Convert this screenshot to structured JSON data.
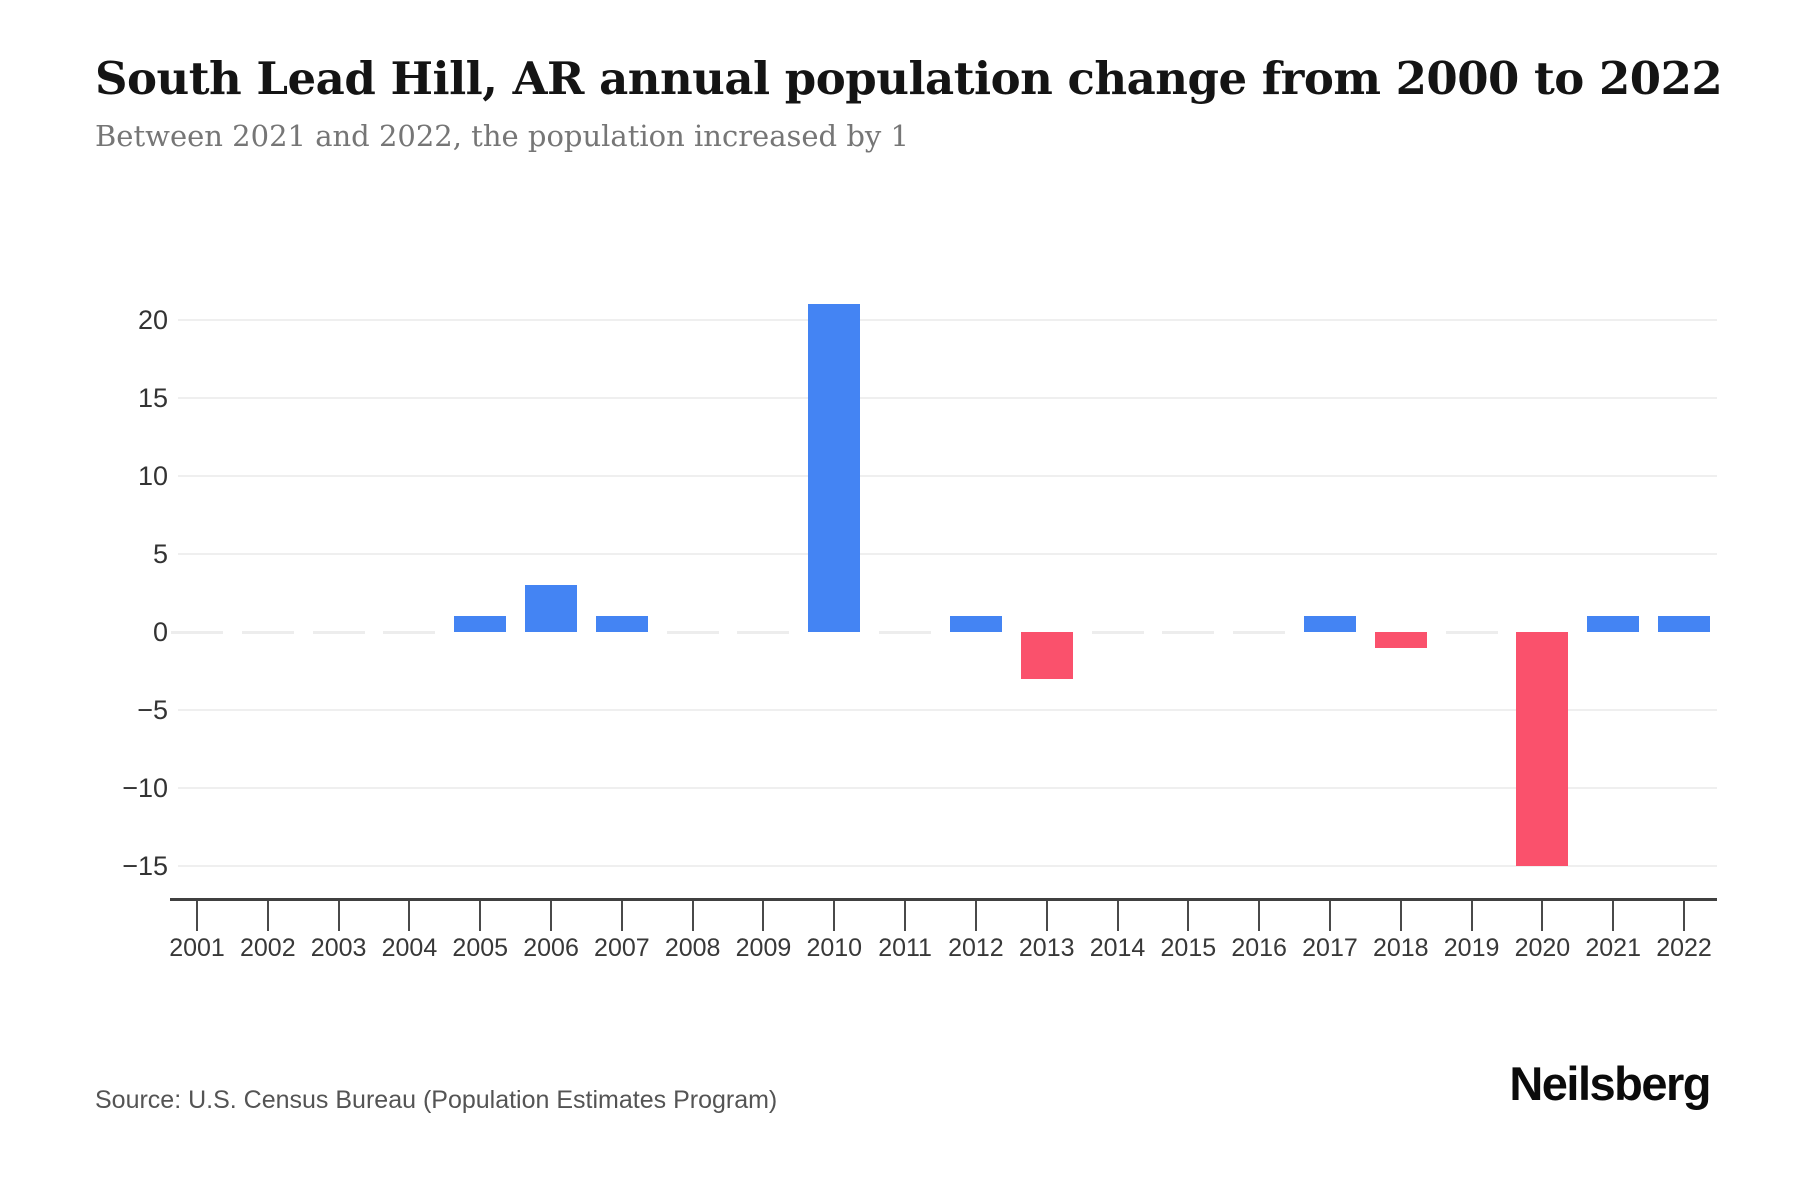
{
  "header": {
    "title": "South Lead Hill, AR annual population change from 2000 to 2022",
    "subtitle": "Between 2021 and 2022, the population increased by 1"
  },
  "footer": {
    "source": "Source: U.S. Census Bureau (Population Estimates Program)",
    "brand": "Neilsberg"
  },
  "chart_data": {
    "type": "bar",
    "title": "South Lead Hill, AR annual population change from 2000 to 2022",
    "subtitle": "Between 2021 and 2022, the population increased by 1",
    "categories": [
      "2001",
      "2002",
      "2003",
      "2004",
      "2005",
      "2006",
      "2007",
      "2008",
      "2009",
      "2010",
      "2011",
      "2012",
      "2013",
      "2014",
      "2015",
      "2016",
      "2017",
      "2018",
      "2019",
      "2020",
      "2021",
      "2022"
    ],
    "values": [
      0,
      0,
      0,
      0,
      1,
      3,
      1,
      0,
      0,
      21,
      0,
      1,
      -3,
      0,
      0,
      0,
      1,
      -1,
      0,
      -15,
      1,
      1
    ],
    "xlabel": "",
    "ylabel": "",
    "ylim": [
      -17.2,
      24.3
    ],
    "yticks": [
      {
        "value": 20,
        "label": "20"
      },
      {
        "value": 15,
        "label": "15"
      },
      {
        "value": 10,
        "label": "10"
      },
      {
        "value": 5,
        "label": "5"
      },
      {
        "value": 0,
        "label": "0"
      },
      {
        "value": -5,
        "label": "−5"
      },
      {
        "value": -10,
        "label": "−10"
      },
      {
        "value": -15,
        "label": "−15"
      }
    ],
    "grid": true,
    "legend": false,
    "colors": {
      "positive_bar": "#4484F3",
      "negative_bar": "#FA516C",
      "zero_bar": "#EDEDED",
      "gridline": "#EFEFEF",
      "axis_line": "#404040",
      "x_tick": "#4A4A4A",
      "xtick_label": "#383838",
      "ytick_label": "#333333"
    }
  }
}
